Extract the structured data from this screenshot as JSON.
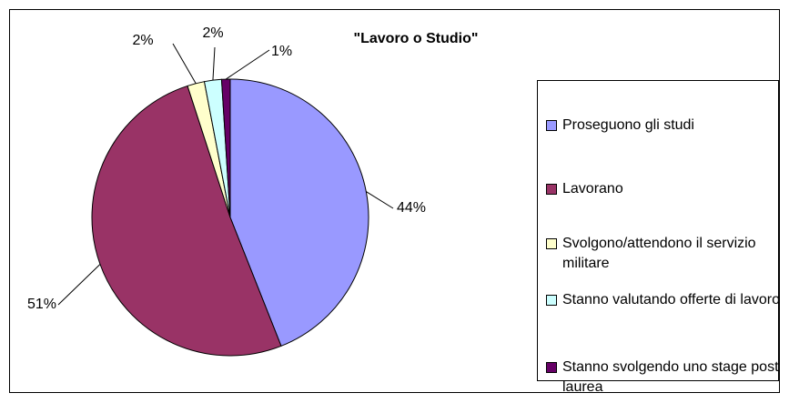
{
  "chart_data": {
    "type": "pie",
    "title": "\"Lavoro o Studio\"",
    "categories": [
      "Proseguono gli studi",
      "Lavorano",
      "Svolgono/attendono il servizio militare",
      "Stanno valutando offerte di lavoro",
      "Stanno svolgendo uno stage post laurea"
    ],
    "values": [
      44,
      51,
      2,
      2,
      1
    ],
    "value_labels": [
      "44%",
      "51%",
      "2%",
      "2%",
      "1%"
    ],
    "colors": [
      "#9999ff",
      "#993366",
      "#ffffcc",
      "#ccffff",
      "#660066"
    ],
    "legend": "right"
  }
}
